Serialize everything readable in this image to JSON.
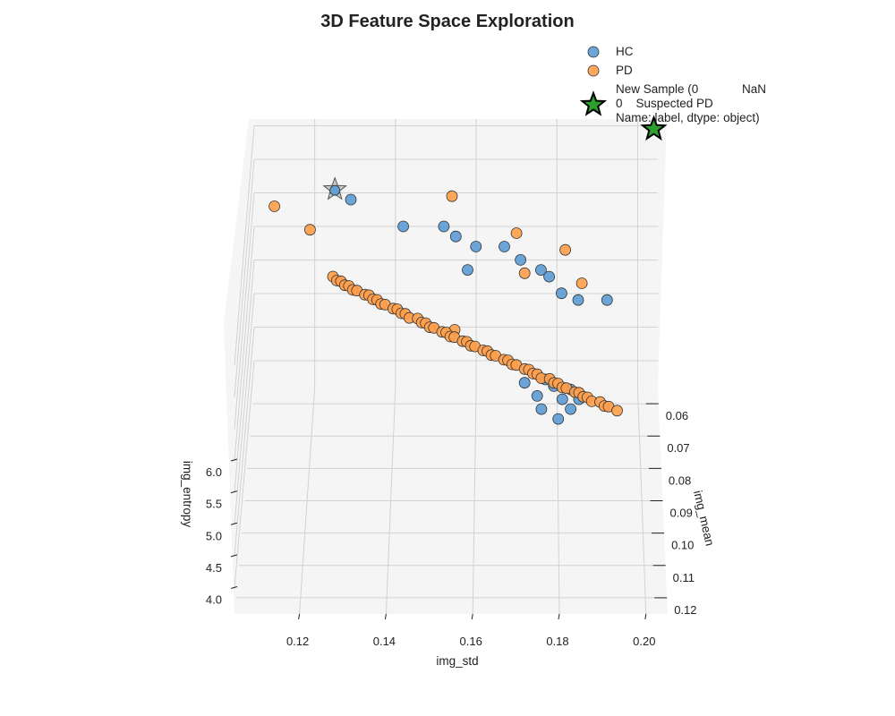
{
  "chart_data": {
    "type": "scatter",
    "projection": "3d",
    "title": "3D Feature Space Exploration",
    "xlabel": "img_std",
    "ylabel": "img_mean",
    "zlabel": "img_entropy",
    "x_ticks": [
      "0.12",
      "0.14",
      "0.16",
      "0.18",
      "0.20"
    ],
    "y_ticks": [
      "0.06",
      "0.07",
      "0.08",
      "0.09",
      "0.10",
      "0.11",
      "0.12"
    ],
    "z_ticks": [
      "4.0",
      "4.5",
      "5.0",
      "5.5",
      "6.0"
    ],
    "xlim": [
      0.105,
      0.205
    ],
    "ylim": [
      0.055,
      0.125
    ],
    "zlim": [
      3.6,
      7.6
    ],
    "grid": true,
    "legend_position": "top-right",
    "colors": {
      "HC": "#5b9bd5",
      "PD": "#ff9f4a",
      "new_sample": "#2ca02c"
    },
    "legend": [
      {
        "key": "HC",
        "label": "HC",
        "marker": "circle"
      },
      {
        "key": "PD",
        "label": "PD",
        "marker": "circle"
      },
      {
        "key": "new_sample",
        "label_lines": [
          "New Sample (0             NaN",
          "0    Suspected PD",
          "Name: label, dtype: object)"
        ],
        "marker": "star"
      }
    ],
    "series": [
      {
        "name": "HC",
        "points": [
          [
            0.152,
            0.056,
            6.05
          ],
          [
            0.155,
            0.058,
            6.0
          ],
          [
            0.16,
            0.06,
            5.95
          ],
          [
            0.176,
            0.065,
            5.85
          ],
          [
            0.178,
            0.066,
            5.8
          ],
          [
            0.181,
            0.07,
            5.75
          ],
          [
            0.185,
            0.074,
            5.85
          ],
          [
            0.192,
            0.075,
            5.9
          ],
          [
            0.167,
            0.06,
            5.95
          ],
          [
            0.171,
            0.062,
            5.85
          ],
          [
            0.158,
            0.064,
            5.8
          ],
          [
            0.129,
            0.056,
            6.45
          ],
          [
            0.142,
            0.057,
            6.1
          ],
          [
            0.172,
            0.086,
            5.2
          ],
          [
            0.175,
            0.088,
            5.1
          ],
          [
            0.179,
            0.087,
            5.2
          ],
          [
            0.181,
            0.089,
            5.1
          ],
          [
            0.183,
            0.088,
            5.2
          ],
          [
            0.183,
            0.09,
            5.0
          ],
          [
            0.185,
            0.089,
            5.1
          ],
          [
            0.176,
            0.09,
            5.0
          ],
          [
            0.18,
            0.091,
            4.9
          ],
          [
            0.177,
            0.086,
            5.25
          ]
        ]
      },
      {
        "name": "PD",
        "points": [
          [
            0.11,
            0.055,
            6.3
          ],
          [
            0.119,
            0.058,
            6.1
          ],
          [
            0.154,
            0.055,
            6.45
          ],
          [
            0.17,
            0.058,
            6.05
          ],
          [
            0.182,
            0.061,
            5.95
          ],
          [
            0.186,
            0.067,
            5.75
          ],
          [
            0.172,
            0.065,
            5.8
          ],
          [
            0.155,
            0.074,
            5.4
          ],
          [
            0.125,
            0.065,
            5.75
          ],
          [
            0.126,
            0.066,
            5.74
          ],
          [
            0.127,
            0.066,
            5.73
          ],
          [
            0.128,
            0.067,
            5.72
          ],
          [
            0.129,
            0.067,
            5.71
          ],
          [
            0.13,
            0.068,
            5.7
          ],
          [
            0.131,
            0.068,
            5.69
          ],
          [
            0.133,
            0.069,
            5.68
          ],
          [
            0.134,
            0.069,
            5.67
          ],
          [
            0.135,
            0.07,
            5.66
          ],
          [
            0.136,
            0.07,
            5.65
          ],
          [
            0.137,
            0.071,
            5.64
          ],
          [
            0.138,
            0.071,
            5.63
          ],
          [
            0.14,
            0.072,
            5.62
          ],
          [
            0.141,
            0.072,
            5.61
          ],
          [
            0.142,
            0.073,
            5.6
          ],
          [
            0.143,
            0.073,
            5.59
          ],
          [
            0.144,
            0.074,
            5.58
          ],
          [
            0.146,
            0.074,
            5.57
          ],
          [
            0.147,
            0.075,
            5.56
          ],
          [
            0.148,
            0.075,
            5.55
          ],
          [
            0.149,
            0.076,
            5.54
          ],
          [
            0.15,
            0.076,
            5.53
          ],
          [
            0.152,
            0.077,
            5.52
          ],
          [
            0.153,
            0.077,
            5.51
          ],
          [
            0.154,
            0.078,
            5.5
          ],
          [
            0.155,
            0.078,
            5.49
          ],
          [
            0.157,
            0.079,
            5.48
          ],
          [
            0.158,
            0.079,
            5.47
          ],
          [
            0.159,
            0.08,
            5.46
          ],
          [
            0.16,
            0.08,
            5.45
          ],
          [
            0.162,
            0.081,
            5.44
          ],
          [
            0.163,
            0.081,
            5.43
          ],
          [
            0.164,
            0.082,
            5.42
          ],
          [
            0.165,
            0.082,
            5.41
          ],
          [
            0.167,
            0.083,
            5.4
          ],
          [
            0.168,
            0.083,
            5.39
          ],
          [
            0.169,
            0.084,
            5.38
          ],
          [
            0.17,
            0.084,
            5.37
          ],
          [
            0.172,
            0.085,
            5.36
          ],
          [
            0.173,
            0.085,
            5.35
          ],
          [
            0.174,
            0.086,
            5.34
          ],
          [
            0.175,
            0.086,
            5.33
          ],
          [
            0.176,
            0.087,
            5.32
          ],
          [
            0.178,
            0.087,
            5.31
          ],
          [
            0.179,
            0.088,
            5.3
          ],
          [
            0.18,
            0.088,
            5.29
          ],
          [
            0.181,
            0.089,
            5.28
          ],
          [
            0.182,
            0.089,
            5.27
          ],
          [
            0.184,
            0.09,
            5.26
          ],
          [
            0.185,
            0.09,
            5.25
          ],
          [
            0.186,
            0.091,
            5.24
          ],
          [
            0.187,
            0.091,
            5.23
          ],
          [
            0.188,
            0.092,
            5.22
          ],
          [
            0.19,
            0.092,
            5.21
          ],
          [
            0.191,
            0.093,
            5.2
          ],
          [
            0.192,
            0.093,
            5.19
          ],
          [
            0.194,
            0.094,
            5.18
          ]
        ]
      }
    ],
    "new_sample": {
      "label": "New Sample",
      "point": [
        0.204,
        0.055,
        7.45
      ],
      "shadow_point": [
        0.125,
        0.055,
        6.55
      ]
    }
  }
}
